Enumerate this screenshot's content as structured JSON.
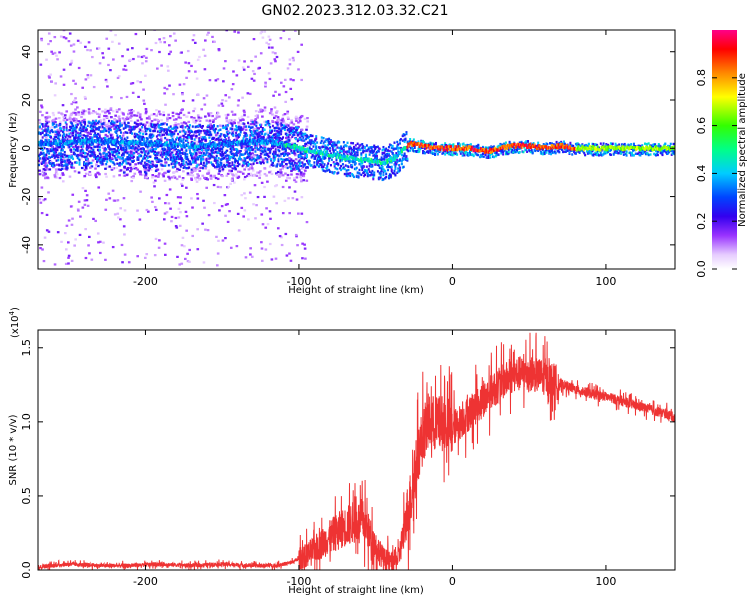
{
  "title": "GN02.2023.312.03.32.C21",
  "chart_data": [
    {
      "type": "heatmap",
      "xlabel": "Height of straight line (km)",
      "ylabel": "Frequency (Hz)",
      "xlim": [
        -270,
        145
      ],
      "ylim": [
        -50,
        49
      ],
      "x_ticks": [
        -200,
        -100,
        0,
        100
      ],
      "y_ticks": [
        -40,
        -20,
        0,
        20,
        40
      ],
      "colorbar": {
        "label": "Normalized spectral amplitude",
        "range": [
          0,
          1
        ],
        "ticks": [
          "0.0",
          "0.2",
          "0.4",
          "0.6",
          "0.8"
        ]
      },
      "ridge": {
        "x": [
          -260,
          -230,
          -200,
          -170,
          -140,
          -120,
          -100,
          -85,
          -70,
          -55,
          -45,
          -38,
          -32,
          -28,
          -20,
          -10,
          0,
          10,
          20,
          25,
          30,
          40,
          50,
          60,
          70,
          80,
          100,
          145
        ],
        "freq": [
          2,
          3,
          2,
          1,
          2,
          3,
          0,
          -2,
          -4,
          -5,
          -6,
          -4,
          0,
          2,
          1,
          0,
          0,
          0,
          -1,
          -1,
          0,
          1,
          1,
          0,
          1,
          0,
          0,
          0
        ]
      }
    },
    {
      "type": "line",
      "xlabel": "Height of straight line (km)",
      "ylabel": "SNR (10 * v/v)",
      "multiplier": "(x10",
      "multiplier_exp": "4",
      "multiplier_close": ")",
      "xlim": [
        -270,
        145
      ],
      "ylim": [
        0,
        1.62
      ],
      "x_ticks": [
        -200,
        -100,
        0,
        100
      ],
      "y_ticks": [
        "0.0",
        "0.5",
        "1.0",
        "1.5"
      ],
      "y_tick_values": [
        0,
        0.5,
        1.0,
        1.5
      ],
      "color": "#ee3333",
      "series": [
        {
          "x": [
            -270,
            -250,
            -230,
            -210,
            -190,
            -170,
            -150,
            -130,
            -115,
            -105,
            -95,
            -85,
            -75,
            -65,
            -58,
            -52,
            -45,
            -40,
            -35,
            -30,
            -26,
            -22,
            -18,
            -14,
            -10,
            -5,
            0,
            10,
            20,
            30,
            40,
            50,
            60,
            70,
            80,
            90,
            100,
            110,
            120,
            130,
            140,
            145
          ],
          "y": [
            0.02,
            0.04,
            0.03,
            0.03,
            0.04,
            0.03,
            0.04,
            0.03,
            0.03,
            0.05,
            0.1,
            0.18,
            0.26,
            0.32,
            0.33,
            0.2,
            0.08,
            0.05,
            0.08,
            0.35,
            0.55,
            0.8,
            0.95,
            1.0,
            0.98,
            1.0,
            0.95,
            1.05,
            1.15,
            1.25,
            1.32,
            1.33,
            1.3,
            1.26,
            1.22,
            1.19,
            1.17,
            1.14,
            1.11,
            1.08,
            1.05,
            1.03
          ]
        }
      ]
    }
  ]
}
